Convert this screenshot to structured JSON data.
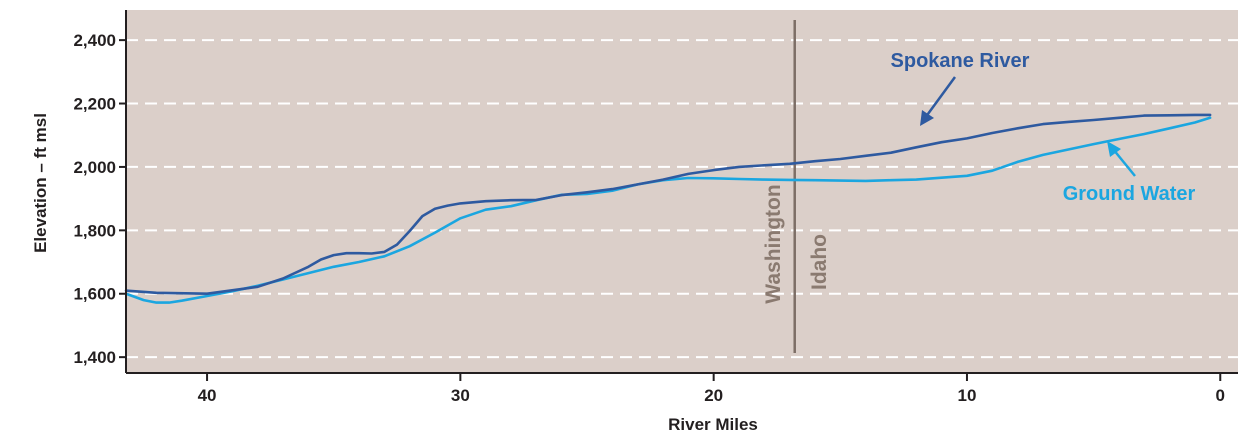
{
  "chart_data": {
    "type": "line",
    "xlabel": "River Miles",
    "ylabel": "Elevation – ft msl",
    "xlim": [
      43.2,
      -0.7
    ],
    "ylim": [
      1350,
      2495
    ],
    "x_ticks": [
      40,
      30,
      20,
      10,
      0
    ],
    "x_tick_labels": [
      "40",
      "30",
      "20",
      "10",
      "0"
    ],
    "y_ticks": [
      2400,
      2200,
      2000,
      1800,
      1600,
      1400
    ],
    "y_tick_labels": [
      "2,400",
      "2,200",
      "2,000",
      "1,800",
      "1,600",
      "1,400"
    ],
    "grid": "horizontal dashed",
    "colors": {
      "background": "#dbcfc9",
      "grid": "#ffffff",
      "axis": "#231f20",
      "spokane_river": "#2e5aa0",
      "ground_water": "#1ba6e0",
      "state_line": "#7d6e66",
      "state_label": "#8a7a70"
    },
    "series": [
      {
        "name": "Spokane River",
        "x": [
          43.2,
          42,
          40,
          38,
          37,
          36,
          35.5,
          35,
          34.5,
          34,
          33.5,
          33,
          32.5,
          32,
          31.5,
          31,
          30.5,
          30,
          29,
          28,
          27,
          26,
          25,
          24,
          23,
          22,
          21,
          20,
          19,
          18,
          17,
          16,
          15,
          14,
          13,
          12,
          11,
          10,
          9,
          8,
          7,
          6,
          5,
          4,
          3,
          2,
          1,
          0.4
        ],
        "y": [
          1610,
          1603,
          1600,
          1622,
          1648,
          1685,
          1708,
          1722,
          1728,
          1728,
          1727,
          1732,
          1755,
          1798,
          1845,
          1868,
          1878,
          1885,
          1892,
          1895,
          1896,
          1911,
          1920,
          1930,
          1945,
          1960,
          1978,
          1990,
          2000,
          2005,
          2010,
          2018,
          2025,
          2035,
          2045,
          2062,
          2078,
          2090,
          2107,
          2122,
          2135,
          2142,
          2148,
          2155,
          2162,
          2163,
          2164,
          2164
        ]
      },
      {
        "name": "Ground Water",
        "x": [
          43.2,
          42.5,
          42,
          41.5,
          41,
          40,
          39,
          38,
          37,
          36,
          35,
          34,
          33,
          32,
          31,
          30,
          29,
          28,
          27,
          26,
          25,
          24,
          23,
          22,
          21,
          20,
          19,
          18,
          17,
          16,
          15,
          14,
          13,
          12,
          11,
          10,
          9,
          8,
          7,
          6,
          5,
          4,
          3,
          2,
          1,
          0.4
        ],
        "y": [
          1600,
          1580,
          1572,
          1572,
          1578,
          1593,
          1608,
          1625,
          1645,
          1665,
          1685,
          1700,
          1718,
          1750,
          1793,
          1838,
          1865,
          1876,
          1895,
          1912,
          1915,
          1925,
          1945,
          1958,
          1965,
          1964,
          1962,
          1960,
          1959,
          1958,
          1957,
          1956,
          1958,
          1960,
          1966,
          1972,
          1988,
          2016,
          2038,
          2055,
          2072,
          2088,
          2104,
          2122,
          2140,
          2155
        ]
      }
    ],
    "annotations": {
      "spokane_label": "Spokane River",
      "groundwater_label": "Ground Water",
      "state_left": "Washington",
      "state_right": "Idaho",
      "state_line_x": 16.8
    }
  }
}
